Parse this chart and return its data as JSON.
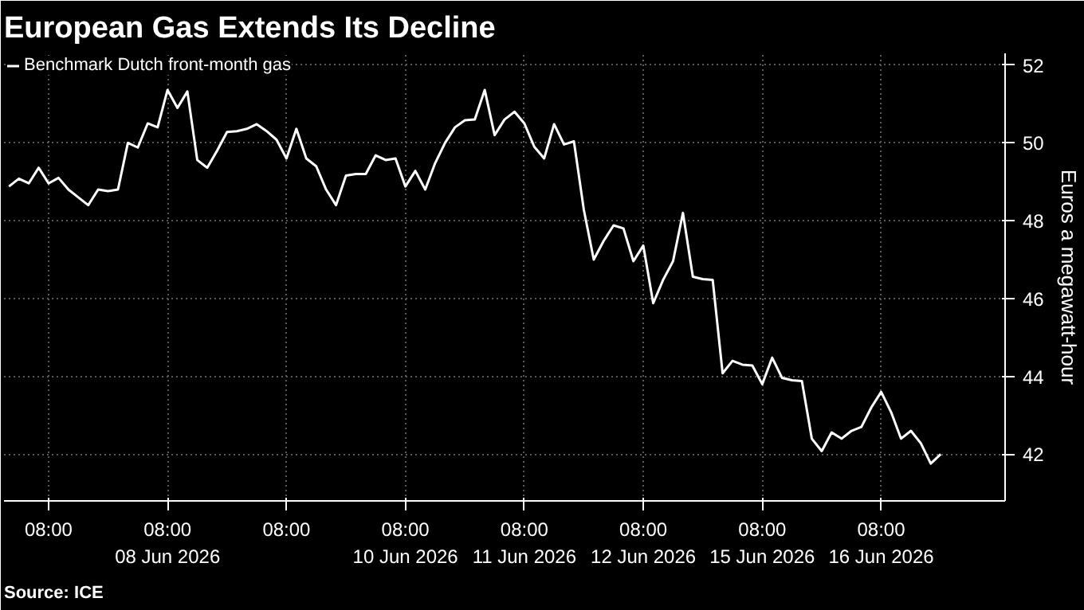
{
  "chart_data": {
    "type": "line",
    "title": "European Gas Extends Its Decline",
    "ylabel": "Euros a megawatt-hour",
    "annotations": [
      "Source: ICE"
    ],
    "ylim": [
      40.8,
      52.3
    ],
    "yticks": [
      42,
      44,
      46,
      48,
      50,
      52
    ],
    "grid": true,
    "legend": "top left",
    "categories": [
      null,
      null,
      null,
      null,
      "08:00",
      null,
      null,
      null,
      null,
      null,
      null,
      null,
      null,
      null,
      null,
      null,
      "08:00\n08 Jun 2026",
      null,
      null,
      null,
      null,
      null,
      null,
      null,
      null,
      null,
      null,
      null,
      "08:00",
      null,
      null,
      null,
      null,
      null,
      null,
      null,
      null,
      null,
      null,
      null,
      "08:00\n10 Jun 2026",
      null,
      null,
      null,
      null,
      null,
      null,
      null,
      null,
      null,
      null,
      null,
      "08:00\n11 Jun 2026",
      null,
      null,
      null,
      null,
      null,
      null,
      null,
      null,
      null,
      null,
      null,
      "08:00\n12 Jun 2026",
      null,
      null,
      null,
      null,
      null,
      null,
      null,
      null,
      null,
      null,
      null,
      "08:00\n15 Jun 2026",
      null,
      null,
      null,
      null,
      null,
      null,
      null,
      null,
      null,
      null,
      null,
      "08:00\n16 Jun 2026",
      null,
      null,
      null,
      null,
      null,
      null,
      null,
      null,
      null,
      null,
      null,
      null
    ],
    "series": [
      {
        "name": "Benchmark Dutch front-month gas",
        "color": "#ffffff",
        "values": [
          48.88,
          49.08,
          48.96,
          49.36,
          48.96,
          49.1,
          48.8,
          48.6,
          48.4,
          48.8,
          48.76,
          48.8,
          50.0,
          49.88,
          50.5,
          50.4,
          51.36,
          50.9,
          51.32,
          49.56,
          49.36,
          49.8,
          50.28,
          50.3,
          50.36,
          50.48,
          50.3,
          50.08,
          49.6,
          50.36,
          49.6,
          49.4,
          48.8,
          48.4,
          49.16,
          49.2,
          49.2,
          49.68,
          49.56,
          49.6,
          48.88,
          49.28,
          48.8,
          49.48,
          50.0,
          50.4,
          50.58,
          50.6,
          51.36,
          50.2,
          50.6,
          50.8,
          50.5,
          49.9,
          49.6,
          50.48,
          49.96,
          50.04,
          48.28,
          47.0,
          47.48,
          47.88,
          47.8,
          46.96,
          47.36,
          45.88,
          46.48,
          46.96,
          48.2,
          46.56,
          46.5,
          46.48,
          44.08,
          44.4,
          44.3,
          44.28,
          43.8,
          44.48,
          43.96,
          43.9,
          43.88,
          42.4,
          42.08,
          42.56,
          42.4,
          42.6,
          42.7,
          43.2,
          43.6,
          43.08,
          42.4,
          42.6,
          42.28,
          41.76,
          42.0,
          null,
          null,
          null,
          null,
          null,
          null
        ]
      }
    ]
  }
}
